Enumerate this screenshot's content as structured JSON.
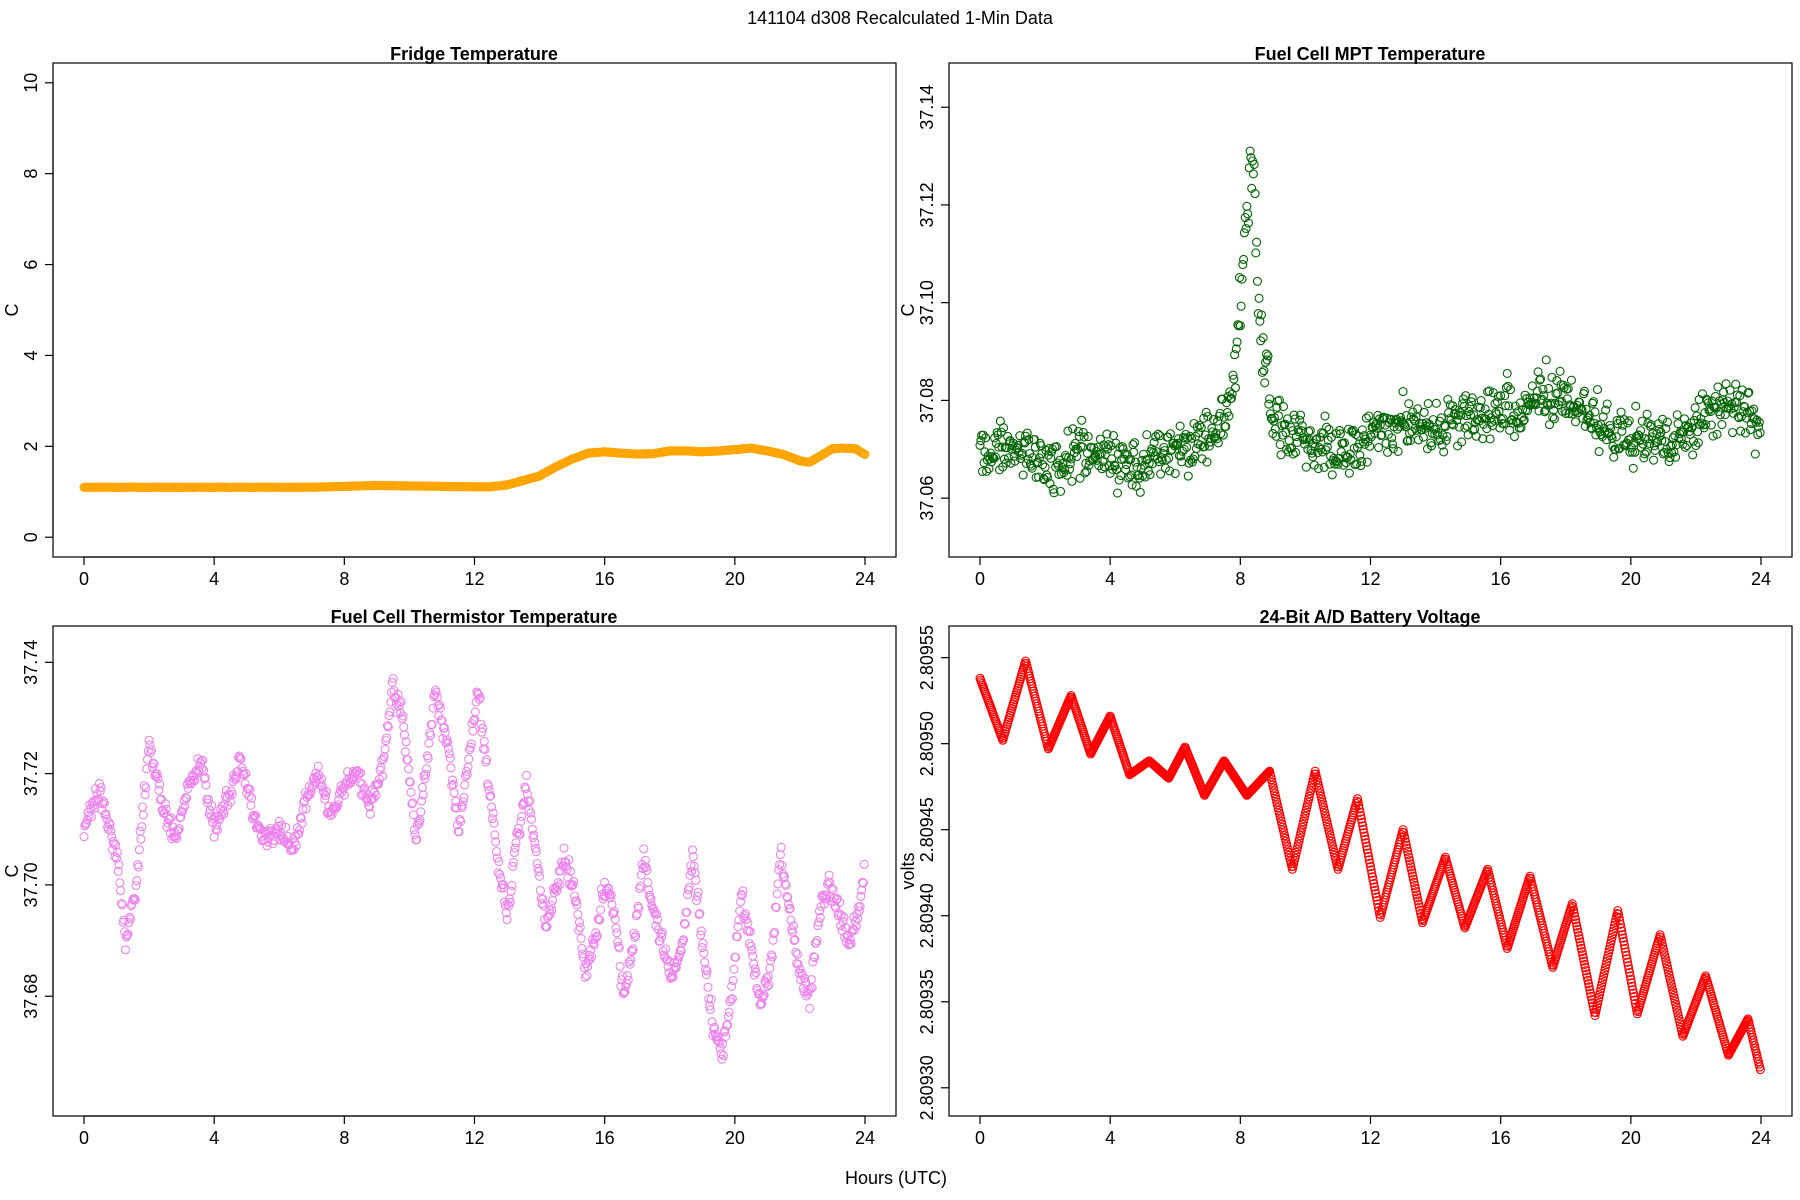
{
  "figure": {
    "title": "141104   d308   Recalculated 1-Min Data",
    "xlabel": "Hours (UTC)"
  },
  "chart_data": [
    {
      "type": "scatter",
      "title": "Fridge Temperature",
      "xlabel": "",
      "ylabel": "C",
      "xlim": [
        0,
        24
      ],
      "ylim": [
        0,
        10
      ],
      "xticks": [
        "0",
        "4",
        "8",
        "12",
        "16",
        "20",
        "24"
      ],
      "yticks": [
        "0",
        "2",
        "4",
        "6",
        "8",
        "10"
      ],
      "color": "#ffa500",
      "series": [
        {
          "name": "Fridge Temperature",
          "x": [
            0,
            1,
            2,
            3,
            4,
            5,
            6,
            7,
            8,
            9,
            10,
            11,
            12,
            12.5,
            13,
            13.5,
            14,
            14.5,
            15,
            15.5,
            16,
            16.5,
            17,
            17.5,
            18,
            18.5,
            19,
            19.5,
            20,
            20.5,
            21,
            21.5,
            22,
            22.3,
            22.7,
            23,
            23.3,
            23.7,
            24
          ],
          "y": [
            1.1,
            1.1,
            1.1,
            1.1,
            1.1,
            1.1,
            1.1,
            1.1,
            1.12,
            1.14,
            1.13,
            1.12,
            1.11,
            1.11,
            1.15,
            1.25,
            1.35,
            1.55,
            1.72,
            1.85,
            1.88,
            1.85,
            1.83,
            1.84,
            1.9,
            1.9,
            1.88,
            1.9,
            1.93,
            1.96,
            1.9,
            1.82,
            1.68,
            1.65,
            1.82,
            1.95,
            1.96,
            1.95,
            1.82
          ]
        }
      ]
    },
    {
      "type": "scatter",
      "title": "Fuel Cell MPT Temperature",
      "xlabel": "",
      "ylabel": "C",
      "xlim": [
        0,
        24
      ],
      "ylim": [
        37.052,
        37.145
      ],
      "xticks": [
        "0",
        "4",
        "8",
        "12",
        "16",
        "20",
        "24"
      ],
      "yticks": [
        "37.06",
        "37.08",
        "37.10",
        "37.12",
        "37.14"
      ],
      "color": "#006400",
      "series": [
        {
          "name": "Fuel Cell MPT Temperature",
          "x": [
            0,
            0.5,
            1,
            1.5,
            2,
            2.5,
            3,
            3.5,
            4,
            4.5,
            5,
            5.5,
            6,
            6.5,
            7,
            7.5,
            7.8,
            8,
            8.2,
            8.4,
            8.6,
            9,
            9.5,
            10,
            10.5,
            11,
            11.5,
            12,
            12.5,
            13,
            13.5,
            14,
            14.5,
            15,
            15.5,
            16,
            16.5,
            17,
            17.5,
            18,
            18.5,
            19,
            19.5,
            20,
            20.5,
            21,
            21.5,
            22,
            22.5,
            23,
            23.5,
            24
          ],
          "y": [
            37.068,
            37.07,
            37.071,
            37.069,
            37.066,
            37.067,
            37.07,
            37.069,
            37.068,
            37.067,
            37.068,
            37.069,
            37.07,
            37.071,
            37.073,
            37.076,
            37.085,
            37.1,
            37.122,
            37.128,
            37.095,
            37.076,
            37.073,
            37.072,
            37.071,
            37.07,
            37.07,
            37.073,
            37.075,
            37.076,
            37.075,
            37.074,
            37.075,
            37.077,
            37.077,
            37.078,
            37.078,
            37.079,
            37.082,
            37.08,
            37.078,
            37.076,
            37.073,
            37.072,
            37.073,
            37.071,
            37.071,
            37.074,
            37.078,
            37.08,
            37.078,
            37.073
          ]
        }
      ]
    },
    {
      "type": "scatter",
      "title": "Fuel Cell Thermistor Temperature",
      "xlabel": "",
      "ylabel": "C",
      "xlim": [
        0,
        24
      ],
      "ylim": [
        37.662,
        37.743
      ],
      "xticks": [
        "0",
        "4",
        "8",
        "12",
        "16",
        "20",
        "24"
      ],
      "yticks": [
        "37.68",
        "37.70",
        "37.72",
        "37.74"
      ],
      "color": "#ee82ee",
      "series": [
        {
          "name": "Fuel Cell Thermistor Temperature",
          "x": [
            0,
            0.5,
            1.0,
            1.3,
            1.6,
            2.0,
            2.4,
            2.8,
            3.2,
            3.6,
            4.0,
            4.4,
            4.8,
            5.2,
            5.6,
            6.0,
            6.4,
            6.8,
            7.2,
            7.6,
            8.0,
            8.4,
            8.8,
            9.2,
            9.5,
            9.8,
            10.2,
            10.5,
            10.8,
            11.2,
            11.5,
            11.8,
            12.1,
            12.4,
            12.7,
            13.0,
            13.3,
            13.6,
            13.9,
            14.2,
            14.5,
            14.8,
            15.1,
            15.4,
            15.7,
            16.0,
            16.3,
            16.6,
            16.9,
            17.2,
            17.5,
            17.8,
            18.1,
            18.4,
            18.7,
            19.0,
            19.3,
            19.6,
            19.9,
            20.2,
            20.5,
            20.8,
            21.1,
            21.4,
            21.7,
            22.0,
            22.3,
            22.6,
            22.9,
            23.2,
            23.5,
            23.8,
            24.0
          ],
          "y": [
            37.71,
            37.717,
            37.705,
            37.69,
            37.7,
            37.725,
            37.715,
            37.708,
            37.718,
            37.722,
            37.71,
            37.715,
            37.723,
            37.712,
            37.708,
            37.71,
            37.706,
            37.715,
            37.72,
            37.712,
            37.718,
            37.72,
            37.714,
            37.722,
            37.736,
            37.73,
            37.708,
            37.72,
            37.735,
            37.725,
            37.71,
            37.722,
            37.735,
            37.72,
            37.705,
            37.695,
            37.708,
            37.718,
            37.705,
            37.692,
            37.7,
            37.705,
            37.698,
            37.685,
            37.69,
            37.7,
            37.695,
            37.68,
            37.69,
            37.705,
            37.695,
            37.69,
            37.683,
            37.69,
            37.705,
            37.69,
            37.675,
            37.67,
            37.68,
            37.698,
            37.69,
            37.678,
            37.685,
            37.705,
            37.695,
            37.683,
            37.68,
            37.695,
            37.7,
            37.695,
            37.69,
            37.695,
            37.705
          ]
        }
      ]
    },
    {
      "type": "scatter",
      "title": "24-Bit A/D Battery Voltage",
      "xlabel": "",
      "ylabel": "volts",
      "xlim": [
        0,
        24
      ],
      "ylim": [
        2.809295,
        2.809557
      ],
      "xticks": [
        "0",
        "4",
        "8",
        "12",
        "16",
        "20",
        "24"
      ],
      "yticks": [
        "2.80930",
        "2.80935",
        "2.80940",
        "2.80945",
        "2.80950",
        "2.80955"
      ],
      "color": "#ff0000",
      "series": [
        {
          "name": "24-Bit A/D Battery Voltage",
          "x": [
            0,
            0.7,
            1.4,
            2.1,
            2.8,
            3.4,
            4.0,
            4.6,
            5.2,
            5.8,
            6.3,
            6.9,
            7.5,
            8.2,
            8.9,
            9.6,
            10.3,
            11.0,
            11.6,
            12.3,
            13.0,
            13.6,
            14.3,
            14.9,
            15.6,
            16.2,
            16.9,
            17.6,
            18.2,
            18.9,
            19.6,
            20.2,
            20.9,
            21.6,
            22.3,
            23.0,
            23.6,
            24.0
          ],
          "y": [
            2.809538,
            2.809502,
            2.809548,
            2.809497,
            2.809528,
            2.809494,
            2.809516,
            2.809482,
            2.80949,
            2.80948,
            2.809498,
            2.80947,
            2.80949,
            2.80947,
            2.809484,
            2.809427,
            2.809484,
            2.809427,
            2.809468,
            2.809399,
            2.80945,
            2.809396,
            2.809434,
            2.809393,
            2.809427,
            2.809381,
            2.809423,
            2.80937,
            2.809407,
            2.809342,
            2.809403,
            2.809343,
            2.809389,
            2.80933,
            2.809365,
            2.809319,
            2.80934,
            2.809309
          ]
        }
      ]
    }
  ]
}
